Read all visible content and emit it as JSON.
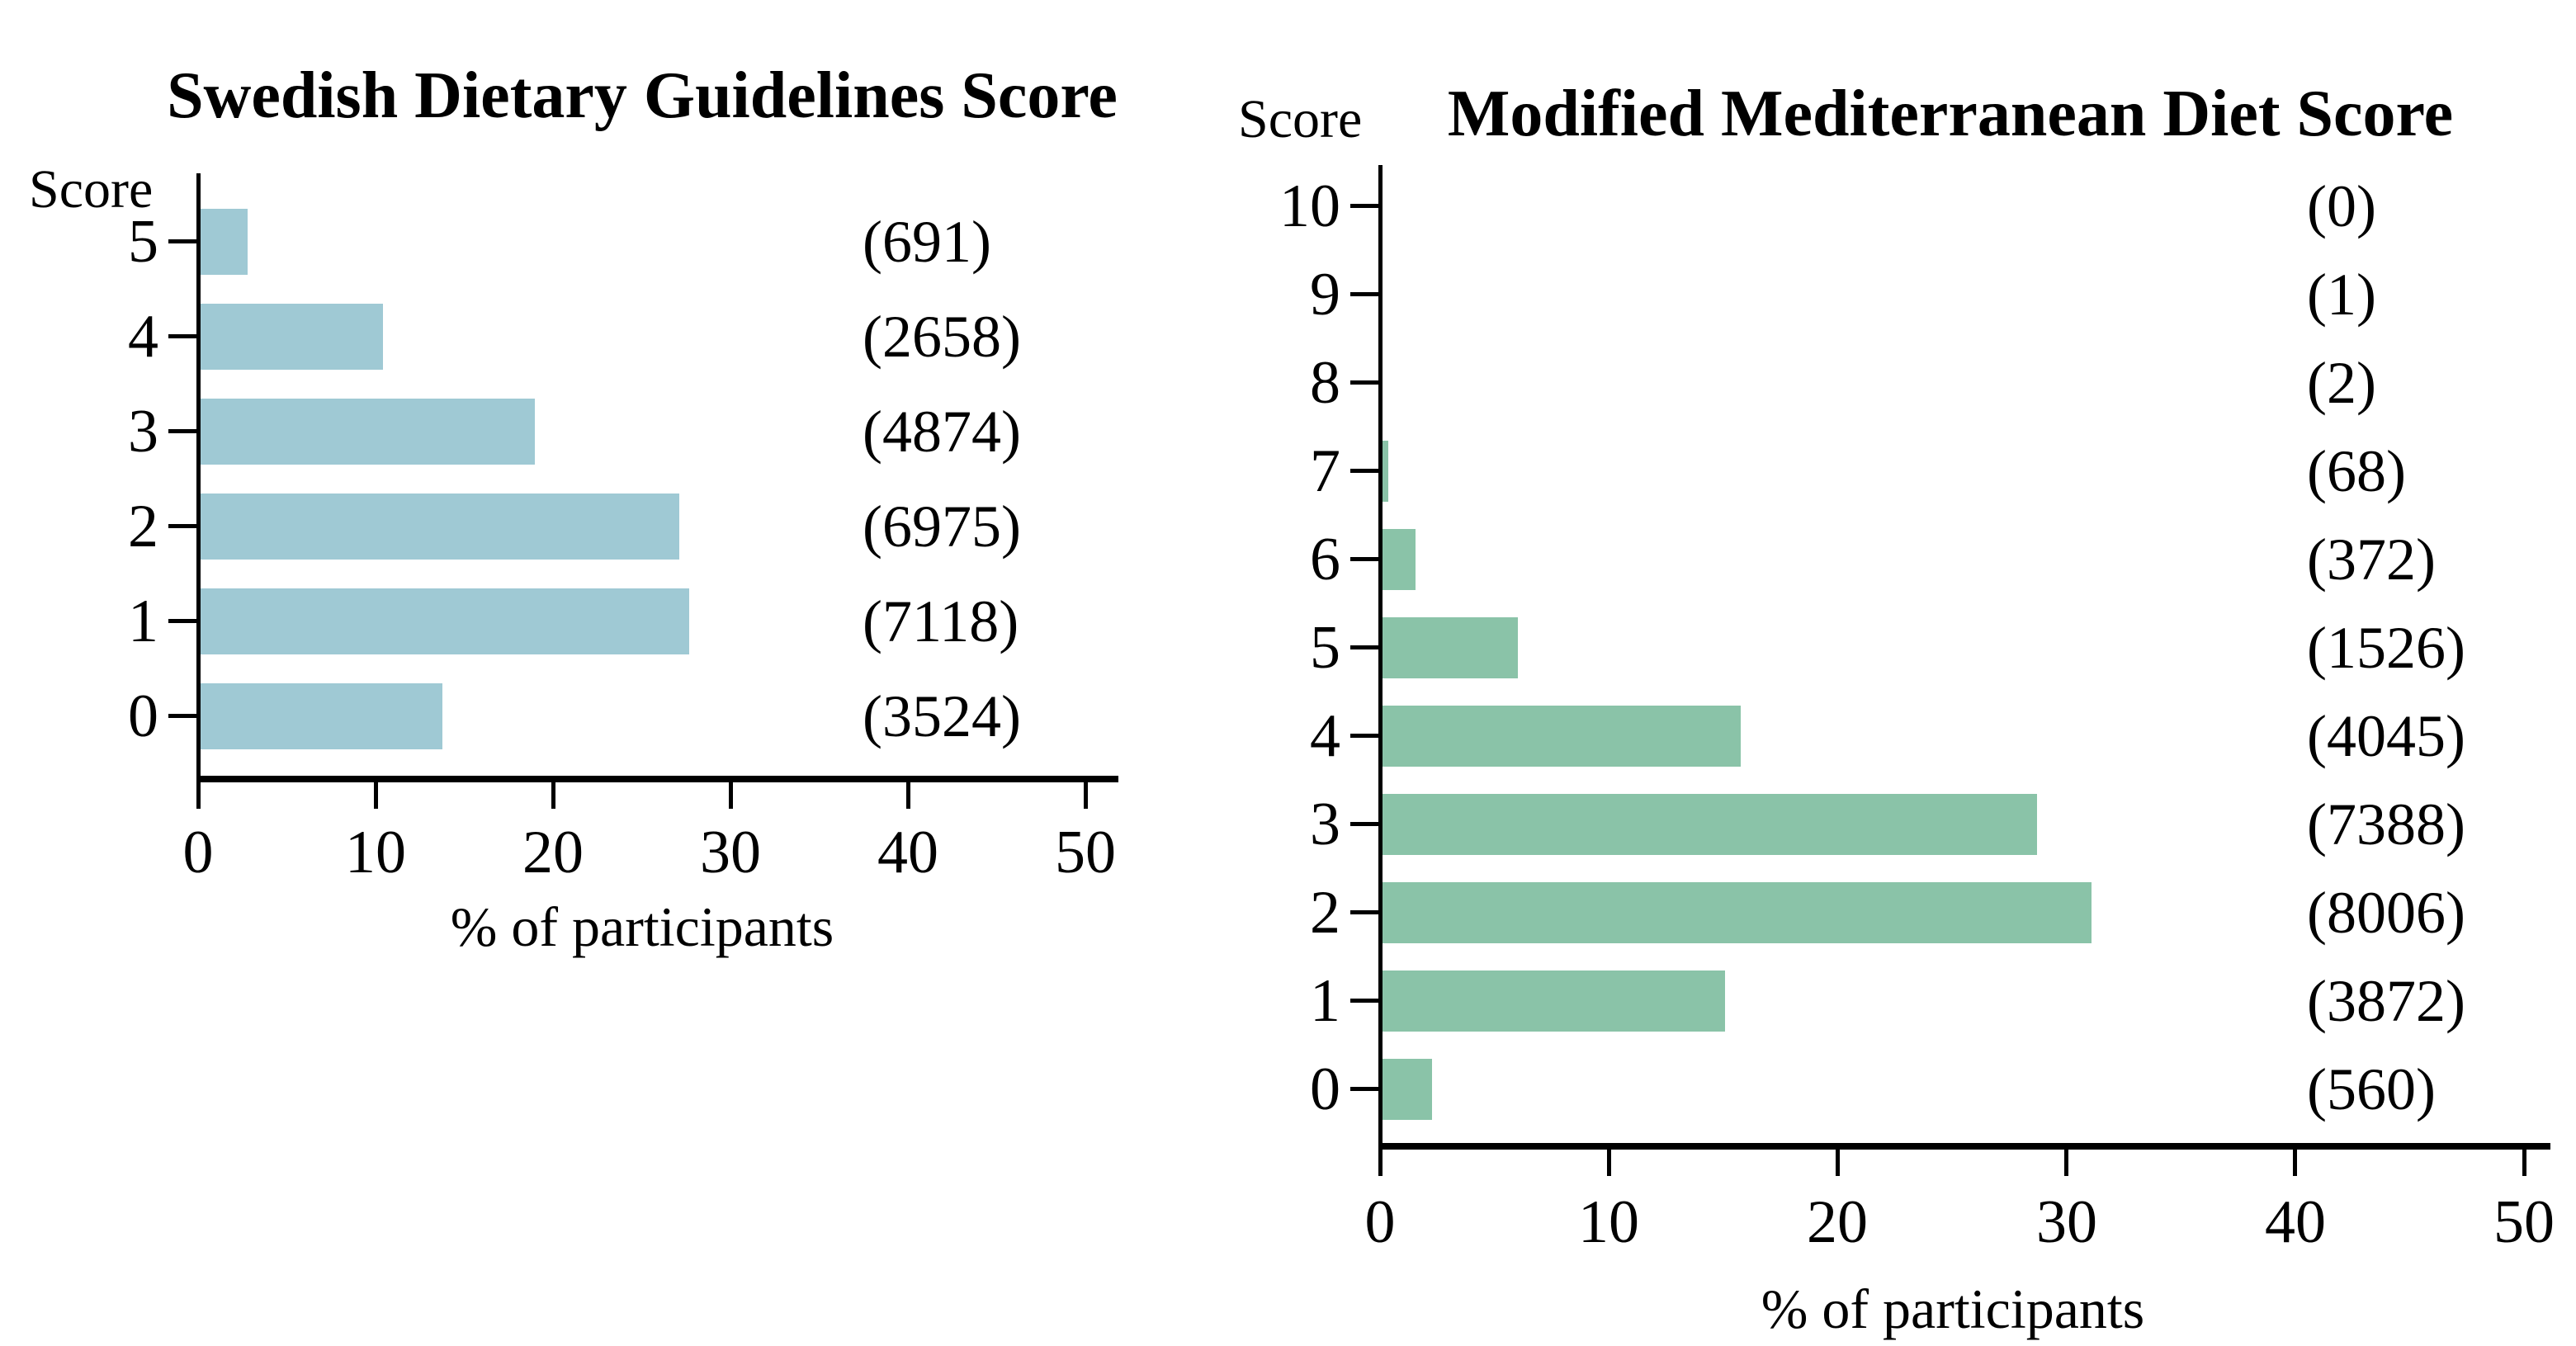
{
  "chart_data": [
    {
      "type": "bar",
      "orientation": "horizontal",
      "title": "Swedish Dietary Guidelines Score",
      "ylabel": "Score",
      "xlabel": "% of participants",
      "xlim": [
        0,
        50
      ],
      "xticks": [
        0,
        10,
        20,
        30,
        40,
        50
      ],
      "grid": false,
      "legend": false,
      "categories": [
        "5",
        "4",
        "3",
        "2",
        "1",
        "0"
      ],
      "values": [
        2.67,
        10.29,
        18.86,
        26.99,
        27.55,
        13.64
      ],
      "counts": [
        "(691)",
        "(2658)",
        "(4874)",
        "(6975)",
        "(7118)",
        "(3524)"
      ],
      "bar_color": "#9fc9d4"
    },
    {
      "type": "bar",
      "orientation": "horizontal",
      "title": "Modified Mediterranean Diet Score",
      "ylabel": "Score",
      "xlabel": "% of participants",
      "xlim": [
        0,
        50
      ],
      "xticks": [
        0,
        10,
        20,
        30,
        40,
        50
      ],
      "grid": false,
      "legend": false,
      "categories": [
        "10",
        "9",
        "8",
        "7",
        "6",
        "5",
        "4",
        "3",
        "2",
        "1",
        "0"
      ],
      "values": [
        0,
        0.004,
        0.008,
        0.26,
        1.44,
        5.91,
        15.65,
        28.59,
        30.98,
        14.98,
        2.17
      ],
      "counts": [
        "(0)",
        "(1)",
        "(2)",
        "(68)",
        "(372)",
        "(1526)",
        "(4045)",
        "(7388)",
        "(8006)",
        "(3872)",
        "(560)"
      ],
      "bar_color": "#8ac3a8"
    }
  ],
  "text_color": "#000000",
  "background_color": "#ffffff"
}
